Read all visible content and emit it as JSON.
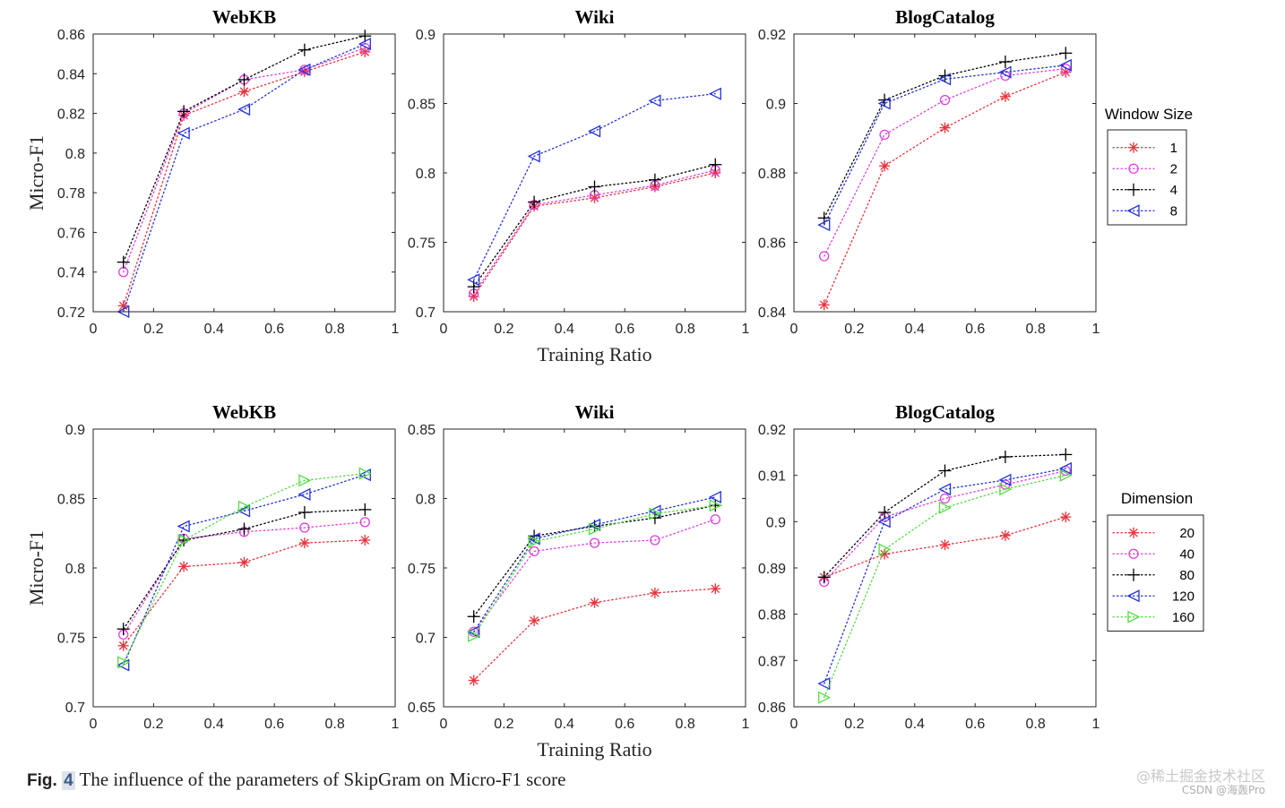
{
  "chart_data": [
    {
      "type": "line",
      "title": "WebKB",
      "xlabel": "",
      "ylabel": "Micro-F1",
      "xlim": [
        0,
        1
      ],
      "ylim": [
        0.72,
        0.86
      ],
      "xticks": [
        "0",
        "0.2",
        "0.4",
        "0.6",
        "0.8",
        "1"
      ],
      "yticks": [
        "0.72",
        "0.74",
        "0.76",
        "0.78",
        "0.8",
        "0.82",
        "0.84",
        "0.86"
      ],
      "x": [
        0.1,
        0.3,
        0.5,
        0.7,
        0.9
      ],
      "series": [
        {
          "name": "1",
          "values": [
            0.723,
            0.819,
            0.831,
            0.841,
            0.851
          ],
          "color": "#e8333c",
          "marker": "asterisk"
        },
        {
          "name": "2",
          "values": [
            0.74,
            0.82,
            0.837,
            0.842,
            0.853
          ],
          "color": "#e040e0",
          "marker": "circle"
        },
        {
          "name": "4",
          "values": [
            0.745,
            0.821,
            0.837,
            0.852,
            0.859
          ],
          "color": "#000000",
          "marker": "plus"
        },
        {
          "name": "8",
          "values": [
            0.72,
            0.81,
            0.822,
            0.842,
            0.855
          ],
          "color": "#2433d8",
          "marker": "triangle-left"
        }
      ]
    },
    {
      "type": "line",
      "title": "Wiki",
      "xlabel": "Training Ratio",
      "ylabel": "",
      "xlim": [
        0,
        1
      ],
      "ylim": [
        0.7,
        0.9
      ],
      "xticks": [
        "0",
        "0.2",
        "0.4",
        "0.6",
        "0.8",
        "1"
      ],
      "yticks": [
        "0.7",
        "0.75",
        "0.8",
        "0.85",
        "0.9"
      ],
      "x": [
        0.1,
        0.3,
        0.5,
        0.7,
        0.9
      ],
      "series": [
        {
          "name": "1",
          "values": [
            0.711,
            0.776,
            0.782,
            0.79,
            0.8
          ],
          "color": "#e8333c",
          "marker": "asterisk"
        },
        {
          "name": "2",
          "values": [
            0.713,
            0.777,
            0.784,
            0.791,
            0.802
          ],
          "color": "#e040e0",
          "marker": "circle"
        },
        {
          "name": "4",
          "values": [
            0.718,
            0.779,
            0.79,
            0.795,
            0.806
          ],
          "color": "#000000",
          "marker": "plus"
        },
        {
          "name": "8",
          "values": [
            0.723,
            0.812,
            0.83,
            0.852,
            0.857
          ],
          "color": "#2433d8",
          "marker": "triangle-left"
        }
      ]
    },
    {
      "type": "line",
      "title": "BlogCatalog",
      "xlabel": "",
      "ylabel": "",
      "xlim": [
        0,
        1
      ],
      "ylim": [
        0.84,
        0.92
      ],
      "xticks": [
        "0",
        "0.2",
        "0.4",
        "0.6",
        "0.8",
        "1"
      ],
      "yticks": [
        "0.84",
        "0.86",
        "0.88",
        "0.9",
        "0.92"
      ],
      "x": [
        0.1,
        0.3,
        0.5,
        0.7,
        0.9
      ],
      "series": [
        {
          "name": "1",
          "values": [
            0.842,
            0.882,
            0.893,
            0.902,
            0.909
          ],
          "color": "#e8333c",
          "marker": "asterisk"
        },
        {
          "name": "2",
          "values": [
            0.856,
            0.891,
            0.901,
            0.908,
            0.91
          ],
          "color": "#e040e0",
          "marker": "circle"
        },
        {
          "name": "4",
          "values": [
            0.867,
            0.901,
            0.908,
            0.912,
            0.9145
          ],
          "color": "#000000",
          "marker": "plus"
        },
        {
          "name": "8",
          "values": [
            0.865,
            0.9,
            0.907,
            0.909,
            0.911
          ],
          "color": "#2433d8",
          "marker": "triangle-left"
        }
      ]
    },
    {
      "type": "line",
      "title": "WebKB",
      "xlabel": "",
      "ylabel": "Micro-F1",
      "xlim": [
        0,
        1
      ],
      "ylim": [
        0.7,
        0.9
      ],
      "xticks": [
        "0",
        "0.2",
        "0.4",
        "0.6",
        "0.8",
        "1"
      ],
      "yticks": [
        "0.7",
        "0.75",
        "0.8",
        "0.85",
        "0.9"
      ],
      "x": [
        0.1,
        0.3,
        0.5,
        0.7,
        0.9
      ],
      "series": [
        {
          "name": "20",
          "values": [
            0.744,
            0.801,
            0.804,
            0.818,
            0.82
          ],
          "color": "#e8333c",
          "marker": "asterisk"
        },
        {
          "name": "40",
          "values": [
            0.752,
            0.821,
            0.826,
            0.829,
            0.833
          ],
          "color": "#e040e0",
          "marker": "circle"
        },
        {
          "name": "80",
          "values": [
            0.756,
            0.82,
            0.828,
            0.84,
            0.842
          ],
          "color": "#000000",
          "marker": "plus"
        },
        {
          "name": "120",
          "values": [
            0.73,
            0.83,
            0.841,
            0.853,
            0.867
          ],
          "color": "#2433d8",
          "marker": "triangle-left"
        },
        {
          "name": "160",
          "values": [
            0.732,
            0.82,
            0.844,
            0.863,
            0.868
          ],
          "color": "#55dd44",
          "marker": "triangle-right"
        }
      ]
    },
    {
      "type": "line",
      "title": "Wiki",
      "xlabel": "Training Ratio",
      "ylabel": "",
      "xlim": [
        0,
        1
      ],
      "ylim": [
        0.65,
        0.85
      ],
      "xticks": [
        "0",
        "0.2",
        "0.4",
        "0.6",
        "0.8",
        "1"
      ],
      "yticks": [
        "0.65",
        "0.7",
        "0.75",
        "0.8",
        "0.85"
      ],
      "x": [
        0.1,
        0.3,
        0.5,
        0.7,
        0.9
      ],
      "series": [
        {
          "name": "20",
          "values": [
            0.669,
            0.712,
            0.725,
            0.732,
            0.735
          ],
          "color": "#e8333c",
          "marker": "asterisk"
        },
        {
          "name": "40",
          "values": [
            0.704,
            0.762,
            0.768,
            0.77,
            0.785
          ],
          "color": "#e040e0",
          "marker": "circle"
        },
        {
          "name": "80",
          "values": [
            0.715,
            0.773,
            0.78,
            0.786,
            0.795
          ],
          "color": "#000000",
          "marker": "plus"
        },
        {
          "name": "120",
          "values": [
            0.704,
            0.771,
            0.781,
            0.791,
            0.801
          ],
          "color": "#2433d8",
          "marker": "triangle-left"
        },
        {
          "name": "160",
          "values": [
            0.701,
            0.769,
            0.778,
            0.789,
            0.795
          ],
          "color": "#55dd44",
          "marker": "triangle-right"
        }
      ]
    },
    {
      "type": "line",
      "title": "BlogCatalog",
      "xlabel": "",
      "ylabel": "",
      "xlim": [
        0,
        1
      ],
      "ylim": [
        0.86,
        0.92
      ],
      "xticks": [
        "0",
        "0.2",
        "0.4",
        "0.6",
        "0.8",
        "1"
      ],
      "yticks": [
        "0.86",
        "0.87",
        "0.88",
        "0.89",
        "0.9",
        "0.91",
        "0.92"
      ],
      "x": [
        0.1,
        0.3,
        0.5,
        0.7,
        0.9
      ],
      "series": [
        {
          "name": "20",
          "values": [
            0.888,
            0.893,
            0.895,
            0.897,
            0.901
          ],
          "color": "#e8333c",
          "marker": "asterisk"
        },
        {
          "name": "40",
          "values": [
            0.887,
            0.901,
            0.905,
            0.908,
            0.911
          ],
          "color": "#e040e0",
          "marker": "circle"
        },
        {
          "name": "80",
          "values": [
            0.888,
            0.902,
            0.911,
            0.914,
            0.9145
          ],
          "color": "#000000",
          "marker": "plus"
        },
        {
          "name": "120",
          "values": [
            0.865,
            0.9,
            0.907,
            0.909,
            0.9115
          ],
          "color": "#2433d8",
          "marker": "triangle-left"
        },
        {
          "name": "160",
          "values": [
            0.862,
            0.894,
            0.903,
            0.907,
            0.91
          ],
          "color": "#55dd44",
          "marker": "triangle-right"
        }
      ]
    }
  ],
  "legends": [
    {
      "title": "Window Size",
      "entries": [
        "1",
        "2",
        "4",
        "8"
      ]
    },
    {
      "title": "Dimension",
      "entries": [
        "20",
        "40",
        "80",
        "120",
        "160"
      ]
    }
  ],
  "caption": {
    "label": "Fig.",
    "number": "4",
    "text": "The influence of the parameters of SkipGram on Micro-F1 score"
  },
  "watermark": {
    "line1": "@稀土掘金技术社区",
    "line2": "CSDN @海轰Pro"
  }
}
